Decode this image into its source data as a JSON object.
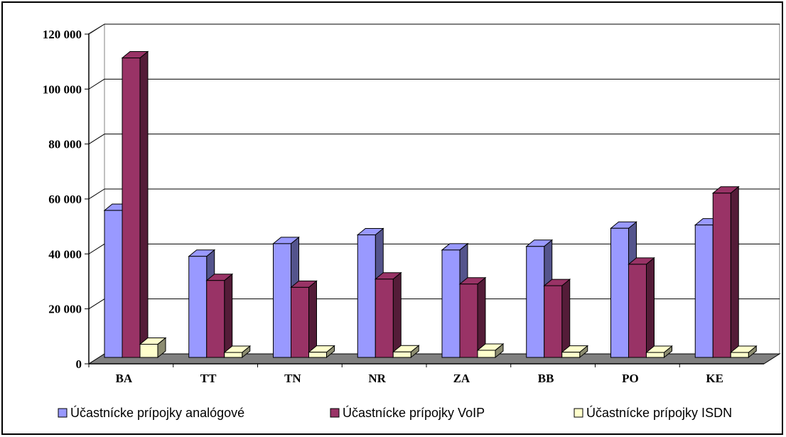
{
  "chart_data": {
    "type": "bar",
    "style": "3d-clustered-column",
    "categories": [
      "BA",
      "TT",
      "TN",
      "NR",
      "ZA",
      "BB",
      "PO",
      "KE"
    ],
    "series": [
      {
        "name": "Účastnícke prípojky analógové",
        "color": "#9999ff",
        "values": [
          53500,
          36800,
          41400,
          44600,
          39100,
          40400,
          47000,
          48200
        ]
      },
      {
        "name": "Účastnícke prípojky  VoIP",
        "color": "#993366",
        "values": [
          109000,
          28000,
          25500,
          28500,
          26700,
          26100,
          33900,
          59800
        ]
      },
      {
        "name": "Účastnícke prípojky ISDN",
        "color": "#ffffcc",
        "values": [
          4800,
          1800,
          1900,
          2000,
          2600,
          1900,
          1800,
          1800
        ]
      }
    ],
    "ylim": [
      0,
      120000
    ],
    "yticks": [
      0,
      20000,
      40000,
      60000,
      80000,
      100000,
      120000
    ],
    "ytick_labels": [
      "0",
      "20 000",
      "40 000",
      "60 000",
      "80 000",
      "100 000",
      "120 000"
    ],
    "grid": true,
    "legend_position": "bottom",
    "colors": {
      "floor": "#808080",
      "grid": "#000000"
    }
  }
}
